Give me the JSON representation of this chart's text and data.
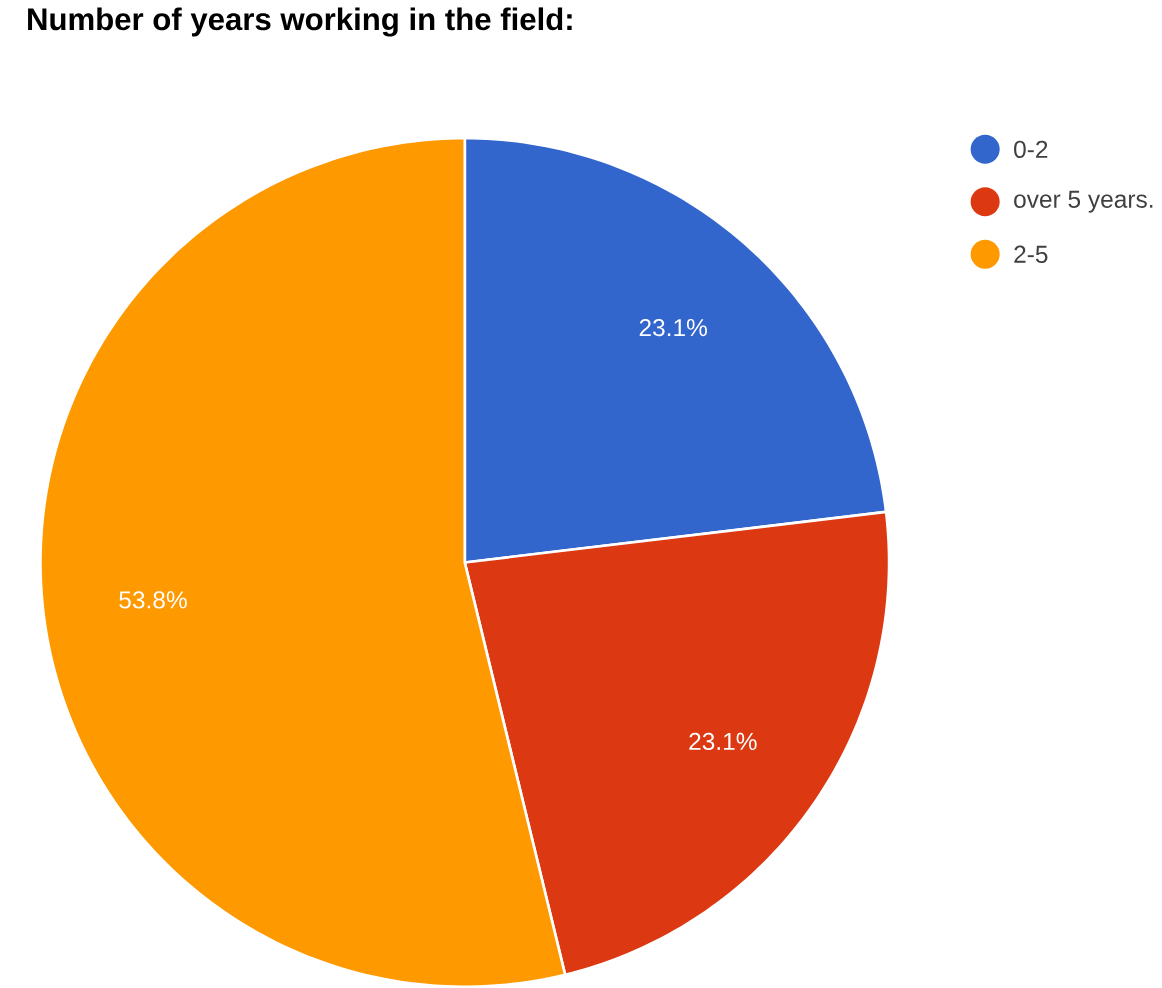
{
  "chart_data": {
    "type": "pie",
    "title": "Number of years working in the field:",
    "categories": [
      "0-2",
      "over 5 years.",
      "2-5"
    ],
    "values": [
      23.1,
      23.1,
      53.8
    ],
    "colors": [
      "#3366cc",
      "#dc3912",
      "#ff9900"
    ],
    "value_labels": [
      "23.1%",
      "23.1%",
      "53.8%"
    ],
    "legend": "top right"
  }
}
